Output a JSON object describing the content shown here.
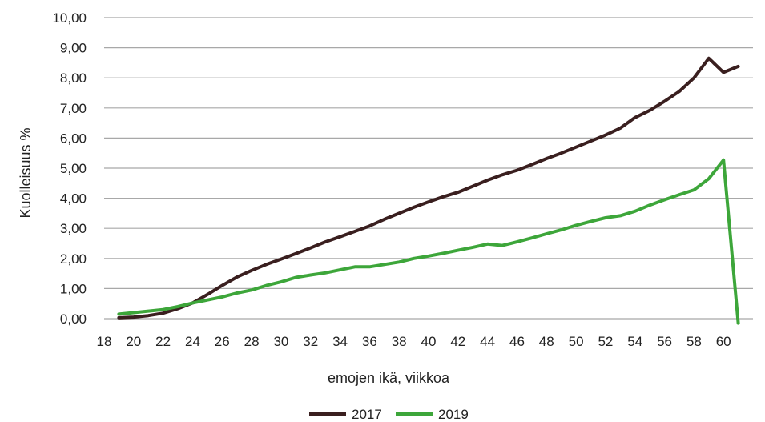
{
  "chart_data": {
    "type": "line",
    "title": "",
    "xlabel": "emojen ikä, viikkoa",
    "ylabel": "Kuolleisuus %",
    "xlim": [
      18,
      62
    ],
    "ylim": [
      0,
      10
    ],
    "x_ticks": [
      18,
      20,
      22,
      24,
      26,
      28,
      30,
      32,
      34,
      36,
      38,
      40,
      42,
      44,
      46,
      48,
      50,
      52,
      54,
      56,
      58,
      60
    ],
    "y_ticks": [
      0,
      1,
      2,
      3,
      4,
      5,
      6,
      7,
      8,
      9,
      10
    ],
    "y_tick_labels": [
      "0,00",
      "1,00",
      "2,00",
      "3,00",
      "4,00",
      "5,00",
      "6,00",
      "7,00",
      "8,00",
      "9,00",
      "10,00"
    ],
    "grid": "horizontal",
    "legend_position": "bottom",
    "series": [
      {
        "name": "2017",
        "color": "#3a1f1f",
        "x": [
          19,
          20,
          21,
          22,
          23,
          24,
          25,
          26,
          27,
          28,
          29,
          30,
          31,
          32,
          33,
          34,
          35,
          36,
          37,
          38,
          39,
          40,
          41,
          42,
          43,
          44,
          45,
          46,
          47,
          48,
          49,
          50,
          51,
          52,
          53,
          54,
          55,
          56,
          57,
          58,
          59,
          60,
          61
        ],
        "y": [
          0.03,
          0.05,
          0.1,
          0.18,
          0.33,
          0.52,
          0.8,
          1.1,
          1.38,
          1.6,
          1.8,
          1.98,
          2.16,
          2.35,
          2.55,
          2.72,
          2.9,
          3.08,
          3.3,
          3.5,
          3.7,
          3.88,
          4.05,
          4.2,
          4.4,
          4.6,
          4.78,
          4.93,
          5.12,
          5.32,
          5.5,
          5.7,
          5.9,
          6.1,
          6.33,
          6.68,
          6.92,
          7.22,
          7.55,
          8.0,
          8.65,
          8.18,
          8.38
        ]
      },
      {
        "name": "2019",
        "color": "#3da63a",
        "x": [
          19,
          20,
          21,
          22,
          23,
          24,
          25,
          26,
          27,
          28,
          29,
          30,
          31,
          32,
          33,
          34,
          35,
          36,
          37,
          38,
          39,
          40,
          41,
          42,
          43,
          44,
          45,
          46,
          47,
          48,
          49,
          50,
          51,
          52,
          53,
          54,
          55,
          56,
          57,
          58,
          59,
          60,
          61
        ],
        "y": [
          0.15,
          0.2,
          0.25,
          0.3,
          0.4,
          0.52,
          0.62,
          0.72,
          0.85,
          0.95,
          1.1,
          1.22,
          1.37,
          1.45,
          1.52,
          1.62,
          1.72,
          1.72,
          1.8,
          1.88,
          2.0,
          2.08,
          2.17,
          2.27,
          2.37,
          2.48,
          2.43,
          2.55,
          2.68,
          2.82,
          2.95,
          3.1,
          3.23,
          3.35,
          3.42,
          3.57,
          3.77,
          3.95,
          4.12,
          4.28,
          4.65,
          5.27,
          -0.15
        ]
      }
    ]
  }
}
